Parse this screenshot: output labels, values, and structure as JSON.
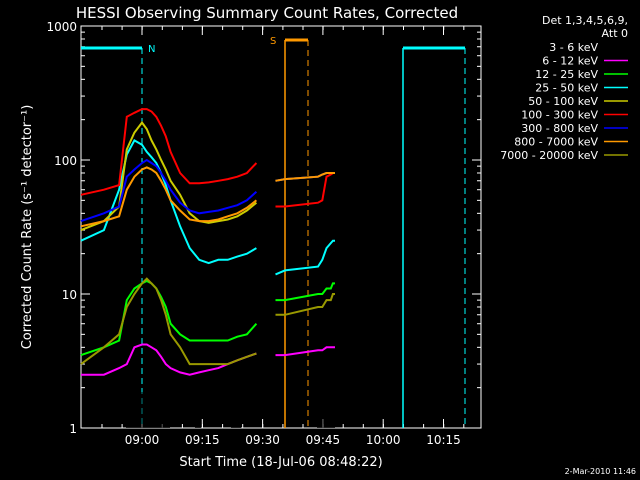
{
  "chart_data": {
    "type": "line",
    "title": "HESSI Observing Summary Count Rates, Corrected",
    "xlabel": "Start Time (18-Jul-06 08:48:22)",
    "ylabel": "Corrected Count Rate (s⁻¹ detector⁻¹)",
    "yscale": "log",
    "ylim": [
      1,
      1000
    ],
    "xlim_minutes": [
      -8,
      31
    ],
    "x_ticks": [
      {
        "t": 0,
        "label": "09:00"
      },
      {
        "t": 15,
        "label": "09:15"
      },
      {
        "t": 30,
        "label": "09:30"
      },
      {
        "t": 45,
        "label": "09:45"
      },
      {
        "t": 60,
        "label": "10:00"
      },
      {
        "t": 75,
        "label": "10:15"
      }
    ],
    "y_ticks": [
      {
        "v": 1,
        "label": "1"
      },
      {
        "v": 10,
        "label": "10"
      },
      {
        "v": 100,
        "label": "100"
      },
      {
        "v": 1000,
        "label": "1000"
      }
    ],
    "legend": {
      "header_line1": "Det 1,3,4,5,6,9,",
      "header_line2": "Att 0",
      "position": "right"
    },
    "series": [
      {
        "name": "3 - 6 keV",
        "color": "#000000"
      },
      {
        "name": "6 - 12 keV",
        "color": "#ff00ff"
      },
      {
        "name": "12 - 25 keV",
        "color": "#00ff00"
      },
      {
        "name": "25 - 50 keV",
        "color": "#00ffff"
      },
      {
        "name": "50 - 100 keV",
        "color": "#cccc00"
      },
      {
        "name": "100 - 300 keV",
        "color": "#ff0000"
      },
      {
        "name": "300 - 800 keV",
        "color": "#0000ff"
      },
      {
        "name": "800 - 7000 keV",
        "color": "#ff9900"
      },
      {
        "name": "7000 - 20000 keV",
        "color": "#999900"
      }
    ],
    "series_approx_data": {
      "x_minutes": [
        -8,
        -5,
        -3,
        -2,
        -1,
        0,
        1,
        2,
        3,
        4,
        5,
        6,
        8,
        10,
        12,
        14,
        16,
        18,
        20,
        22,
        24,
        26,
        28,
        30,
        34,
        36,
        38,
        40,
        41,
        42
      ],
      "gap_after_index": 24,
      "100 - 300 keV": [
        55,
        60,
        65,
        210,
        225,
        240,
        240,
        230,
        210,
        180,
        150,
        115,
        80,
        67,
        67,
        68,
        70,
        72,
        75,
        80,
        95,
        null,
        45,
        45,
        48,
        50,
        75,
        78,
        80,
        80
      ],
      "300 - 800 keV": [
        35,
        40,
        45,
        75,
        85,
        95,
        100,
        95,
        90,
        80,
        70,
        60,
        48,
        42,
        40,
        41,
        42,
        44,
        46,
        50,
        58,
        null,
        70,
        72,
        75,
        78,
        80,
        80,
        80,
        80
      ],
      "800 - 7000 keV": [
        32,
        35,
        38,
        60,
        75,
        85,
        88,
        85,
        80,
        70,
        60,
        50,
        42,
        36,
        35,
        35,
        36,
        38,
        40,
        44,
        50,
        null,
        70,
        72,
        75,
        78,
        80,
        80,
        80,
        80
      ],
      "50 - 100 keV": [
        30,
        35,
        45,
        120,
        160,
        190,
        170,
        140,
        120,
        100,
        85,
        70,
        55,
        40,
        35,
        34,
        35,
        36,
        38,
        42,
        48,
        null,
        70,
        72,
        75,
        78,
        80,
        80,
        80,
        80
      ],
      "25 - 50 keV": [
        25,
        30,
        60,
        110,
        140,
        130,
        115,
        105,
        95,
        80,
        65,
        50,
        32,
        22,
        18,
        17,
        18,
        18,
        19,
        20,
        22,
        null,
        14,
        15,
        16,
        18,
        22,
        24,
        25,
        25
      ],
      "12 - 25 keV": [
        3.5,
        4,
        4.5,
        9,
        11,
        12,
        12.5,
        12,
        11,
        9.5,
        8,
        6,
        5,
        4.5,
        4.5,
        4.5,
        4.5,
        4.5,
        4.8,
        5,
        6,
        null,
        9,
        9,
        10,
        10,
        11,
        11,
        12,
        12
      ],
      "7000 - 20000 keV": [
        3,
        4,
        5,
        8,
        10,
        12,
        13,
        12,
        11,
        9,
        7,
        5,
        4,
        3,
        3,
        3,
        3,
        3,
        3.2,
        3.4,
        3.6,
        null,
        7,
        7,
        8,
        8,
        9,
        9,
        10,
        10
      ],
      "6 - 12 keV": [
        2.5,
        2.5,
        2.8,
        3,
        4,
        4.2,
        4.2,
        4,
        3.8,
        3.4,
        3,
        2.8,
        2.6,
        2.5,
        2.6,
        2.7,
        2.8,
        3,
        3.2,
        3.4,
        3.6,
        null,
        3.5,
        3.5,
        3.8,
        3.8,
        4,
        4,
        4,
        4
      ]
    },
    "observing_flags": [
      {
        "label": "N",
        "color": "#00ffff",
        "kind": "night-marker"
      },
      {
        "label": "S",
        "color": "#ff9900",
        "kind": "saa-marker"
      }
    ],
    "footer_timestamp": "2-Mar-2010 11:46",
    "grid": false
  }
}
